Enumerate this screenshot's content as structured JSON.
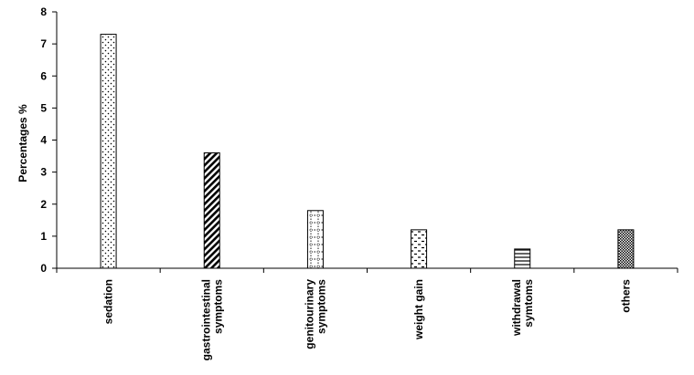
{
  "chart_data": {
    "type": "bar",
    "title": "",
    "xlabel": "",
    "ylabel": "Percentages %",
    "ylim": [
      0,
      8
    ],
    "yticks": [
      0,
      1,
      2,
      3,
      4,
      5,
      6,
      7,
      8
    ],
    "grid": false,
    "legend": "none",
    "categories": [
      [
        "sedation"
      ],
      [
        "gastrointestinal",
        "symptoms"
      ],
      [
        "genitourinary",
        "symptoms"
      ],
      [
        "weight gain"
      ],
      [
        "withdrawal",
        "symtoms"
      ],
      [
        "others"
      ]
    ],
    "values": [
      7.3,
      3.6,
      1.8,
      1.2,
      0.6,
      1.2
    ],
    "patterns": [
      "dots",
      "diagonal-stripes",
      "grid-dots",
      "dashes",
      "horizontal-lines",
      "crosshatch"
    ]
  }
}
